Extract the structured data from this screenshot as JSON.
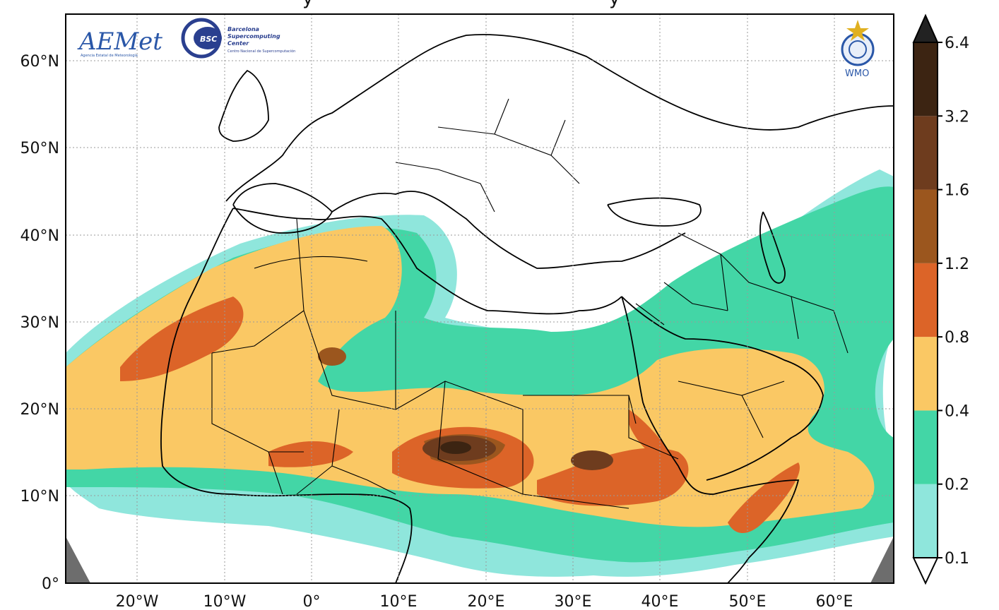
{
  "header": {
    "title_fragment": "y"
  },
  "logos": {
    "aemet": {
      "name": "AEMet",
      "subtitle": "Agencia Estatal de Meteorología"
    },
    "bsc": {
      "badge": "BSC",
      "line1": "Barcelona",
      "line2": "Supercomputing",
      "line3": "Center",
      "subtitle": "Centro Nacional de Supercomputación"
    },
    "wmo": {
      "name": "WMO"
    }
  },
  "map": {
    "lat_labels": [
      "60°N",
      "50°N",
      "40°N",
      "30°N",
      "20°N",
      "10°N",
      "0°"
    ],
    "lon_labels": [
      "20°W",
      "10°W",
      "0°",
      "10°E",
      "20°E",
      "30°E",
      "40°E",
      "50°E",
      "60°E"
    ],
    "extent": {
      "lon": [
        -28,
        67
      ],
      "lat": [
        0,
        65
      ]
    }
  },
  "colorbar": {
    "tick_labels": [
      "0.1",
      "0.2",
      "0.4",
      "0.8",
      "1.2",
      "1.6",
      "3.2",
      "6.4"
    ],
    "levels": [
      {
        "range": "0.1–0.2",
        "color": "#8fe6dc"
      },
      {
        "range": "0.2–0.4",
        "color": "#43d6a6"
      },
      {
        "range": "0.4–0.8",
        "color": "#fac864"
      },
      {
        "range": "0.8–1.2",
        "color": "#dc6428"
      },
      {
        "range": "1.2–1.6",
        "color": "#9b561e"
      },
      {
        "range": "1.6–3.2",
        "color": "#6e3c1e"
      },
      {
        "range": "3.2–6.4",
        "color": "#3c2412"
      },
      {
        "range": ">6.4",
        "color": "#222222"
      }
    ],
    "extend_low_color": "#ffffff"
  }
}
